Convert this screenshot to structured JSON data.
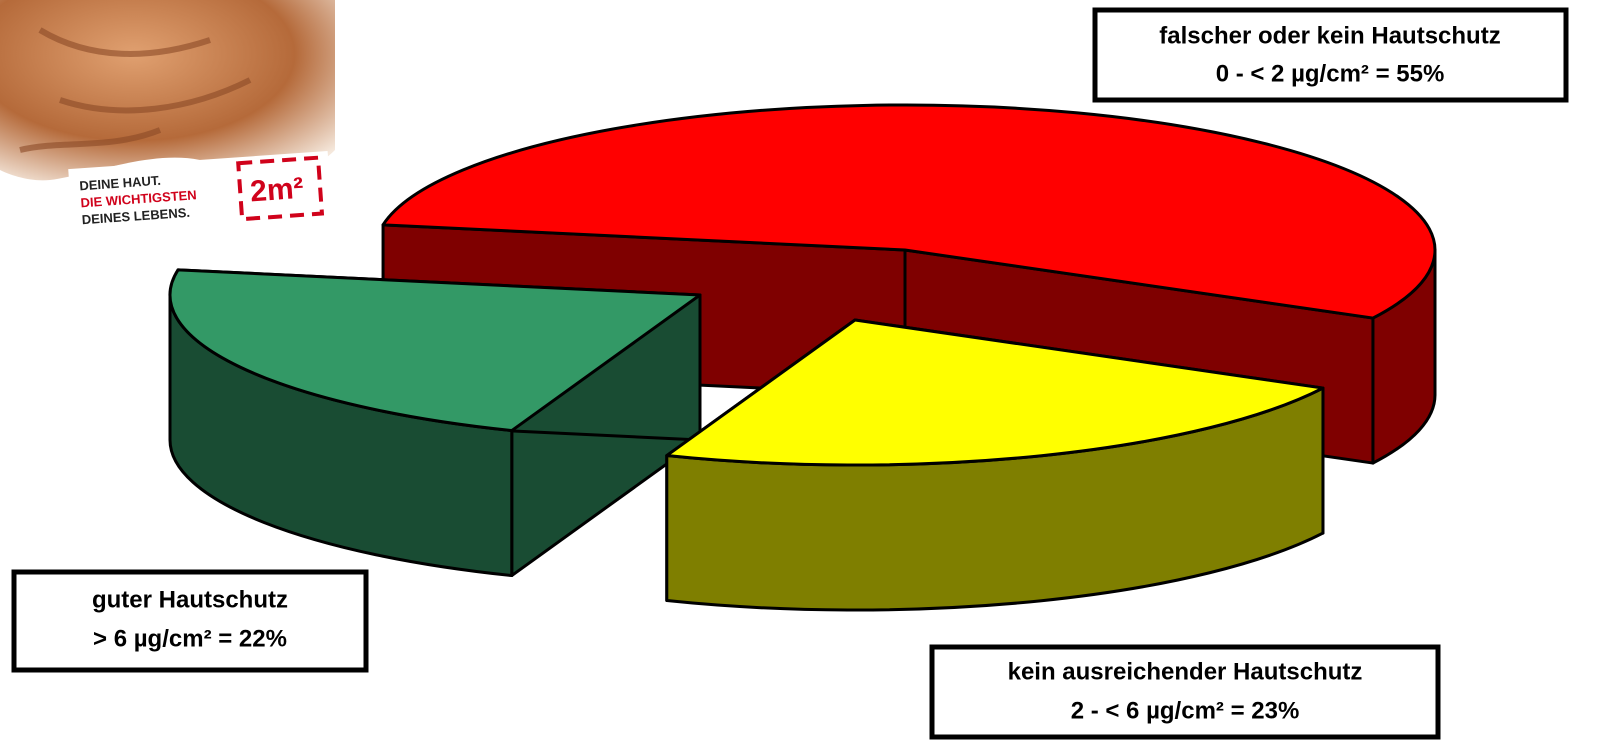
{
  "chart_data": {
    "type": "pie3d",
    "categories": [
      "falscher oder kein Hautschutz",
      "kein ausreichender Hautschutz",
      "guter Hautschutz"
    ],
    "values": [
      55,
      23,
      22
    ],
    "value_labels": [
      "0 - < 2 µg/cm² = 55%",
      "2 - < 6 µg/cm² = 23%",
      "> 6 µg/cm² = 22%"
    ],
    "colors": [
      "#ff0000",
      "#ffff00",
      "#339966"
    ]
  },
  "logo": {
    "lines": [
      "DEINE HAUT.",
      "DIE WICHTIGSTEN",
      "DEINES LEBENS."
    ],
    "mark": "2m²"
  }
}
